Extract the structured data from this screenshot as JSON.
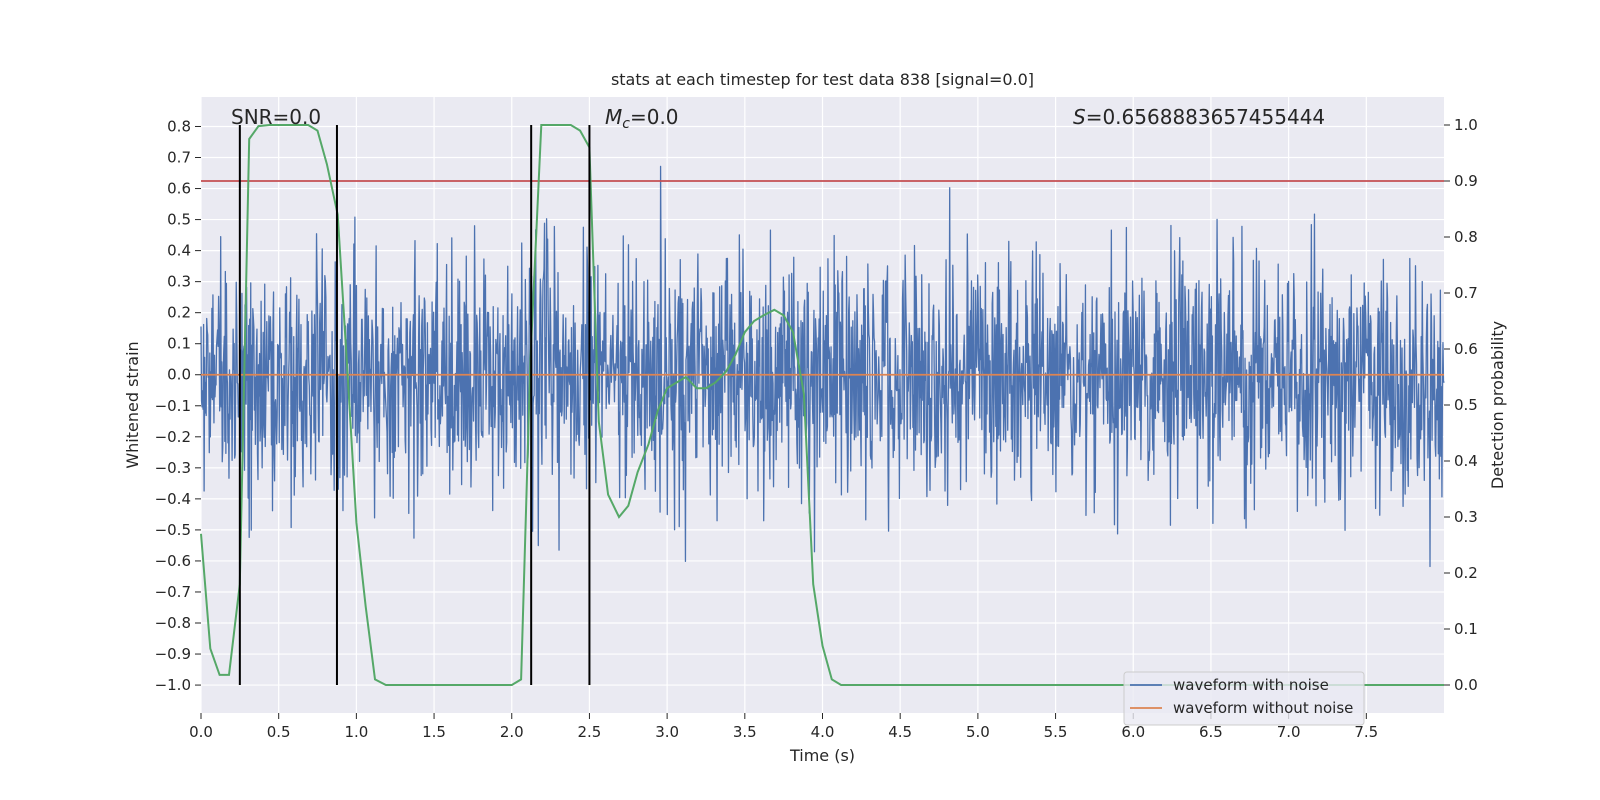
{
  "chart_data": {
    "type": "line",
    "title": "stats at each timestep for test data 838 [signal=0.0]",
    "xlabel": "Time (s)",
    "ylabel": "Whitened strain",
    "ylabel_right": "Detection probability",
    "xlim": [
      0.0,
      8.0
    ],
    "ylim": [
      -1.09,
      0.895
    ],
    "ylim_right": [
      -0.05,
      1.05
    ],
    "xticks": [
      "0.0",
      "0.5",
      "1.0",
      "1.5",
      "2.0",
      "2.5",
      "3.0",
      "3.5",
      "4.0",
      "4.5",
      "5.0",
      "5.5",
      "6.0",
      "6.5",
      "7.0",
      "7.5"
    ],
    "yticks": [
      "0.8",
      "0.7",
      "0.6",
      "0.5",
      "0.4",
      "0.3",
      "0.2",
      "0.1",
      "0.0",
      "-0.1",
      "-0.2",
      "-0.3",
      "-0.4",
      "-0.5",
      "-0.6",
      "-0.7",
      "-0.8",
      "-0.9",
      "-1.0"
    ],
    "yticks_right": [
      "1.0",
      "0.9",
      "0.8",
      "0.7",
      "0.6",
      "0.5",
      "0.4",
      "0.3",
      "0.2",
      "0.1",
      "0.0"
    ],
    "annotations": {
      "snr": "SNR=0.0",
      "mc_symbol": "M",
      "mc_sub": "c",
      "mc_value": "=0.0",
      "s_symbol": "S",
      "s_value": "=0.6568883657455444"
    },
    "threshold_right": 0.9,
    "vlines_x": [
      0.25,
      0.875,
      2.125,
      2.5
    ],
    "series": [
      {
        "name": "waveform with noise",
        "color": "#4c72b0",
        "note": "dense whitened-noise trace, envelope approx -0.45..0.45 with spikes to about +/-0.8",
        "seed": 838,
        "n_samples": 2400
      },
      {
        "name": "waveform without noise",
        "color": "#dd8452",
        "values_constant": 0.0
      },
      {
        "name": "Detection probability",
        "color": "#55a868",
        "axis": "right",
        "x": [
          0.0,
          0.06,
          0.12,
          0.18,
          0.25,
          0.31,
          0.37,
          0.44,
          0.5,
          0.56,
          0.62,
          0.69,
          0.75,
          0.81,
          0.88,
          0.94,
          1.0,
          1.06,
          1.12,
          1.19,
          1.25,
          1.31,
          1.38,
          1.44,
          1.5,
          1.56,
          1.62,
          1.69,
          1.75,
          1.81,
          1.88,
          1.94,
          2.0,
          2.06,
          2.12,
          2.19,
          2.25,
          2.31,
          2.38,
          2.44,
          2.5,
          2.56,
          2.62,
          2.69,
          2.75,
          2.81,
          2.88,
          2.94,
          3.0,
          3.06,
          3.12,
          3.19,
          3.25,
          3.31,
          3.38,
          3.44,
          3.5,
          3.56,
          3.62,
          3.69,
          3.75,
          3.81,
          3.88,
          3.94,
          4.0,
          4.06,
          4.12,
          4.19,
          4.25,
          8.0
        ],
        "values": [
          0.27,
          0.065,
          0.018,
          0.018,
          0.18,
          0.975,
          0.998,
          1.0,
          1.0,
          1.0,
          1.0,
          1.0,
          0.99,
          0.93,
          0.84,
          0.57,
          0.29,
          0.14,
          0.01,
          0.0,
          0.0,
          0.0,
          0.0,
          0.0,
          0.0,
          0.0,
          0.0,
          0.0,
          0.0,
          0.0,
          0.0,
          0.0,
          0.0,
          0.01,
          0.58,
          1.0,
          1.0,
          1.0,
          1.0,
          0.99,
          0.96,
          0.47,
          0.34,
          0.3,
          0.32,
          0.38,
          0.43,
          0.49,
          0.53,
          0.54,
          0.55,
          0.53,
          0.53,
          0.54,
          0.56,
          0.59,
          0.63,
          0.65,
          0.66,
          0.67,
          0.66,
          0.63,
          0.52,
          0.18,
          0.07,
          0.01,
          0.0,
          0.0,
          0.0,
          0.0
        ]
      }
    ],
    "legend": {
      "placement": "lower right",
      "entries": [
        {
          "label": "waveform with noise",
          "color": "#4c72b0"
        },
        {
          "label": "waveform without noise",
          "color": "#dd8452"
        }
      ]
    },
    "style": {
      "background": "#eaeaf2",
      "grid": "#ffffff",
      "threshold_color": "#c44e52",
      "vline_color": "#000000"
    }
  }
}
